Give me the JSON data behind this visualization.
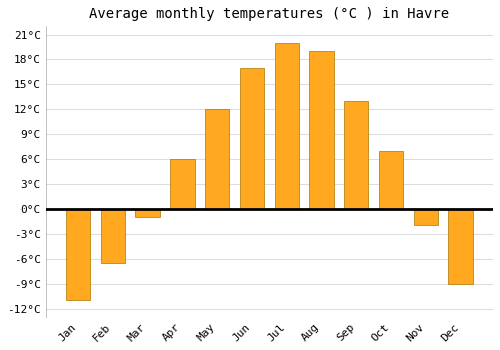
{
  "title": "Average monthly temperatures (°C ) in Havre",
  "months": [
    "Jan",
    "Feb",
    "Mar",
    "Apr",
    "May",
    "Jun",
    "Jul",
    "Aug",
    "Sep",
    "Oct",
    "Nov",
    "Dec"
  ],
  "values": [
    -11,
    -6.5,
    -1,
    6,
    12,
    17,
    20,
    19,
    13,
    7,
    -2,
    -9
  ],
  "bar_color": "#FFA820",
  "bar_edge_color": "#AA7700",
  "background_color": "#FFFFFF",
  "plot_bg_color": "#FFFFFF",
  "grid_color": "#DDDDDD",
  "ylim": [
    -13,
    22
  ],
  "yticks": [
    -12,
    -9,
    -6,
    -3,
    0,
    3,
    6,
    9,
    12,
    15,
    18,
    21
  ],
  "title_fontsize": 10,
  "tick_fontsize": 8,
  "bar_width": 0.7
}
